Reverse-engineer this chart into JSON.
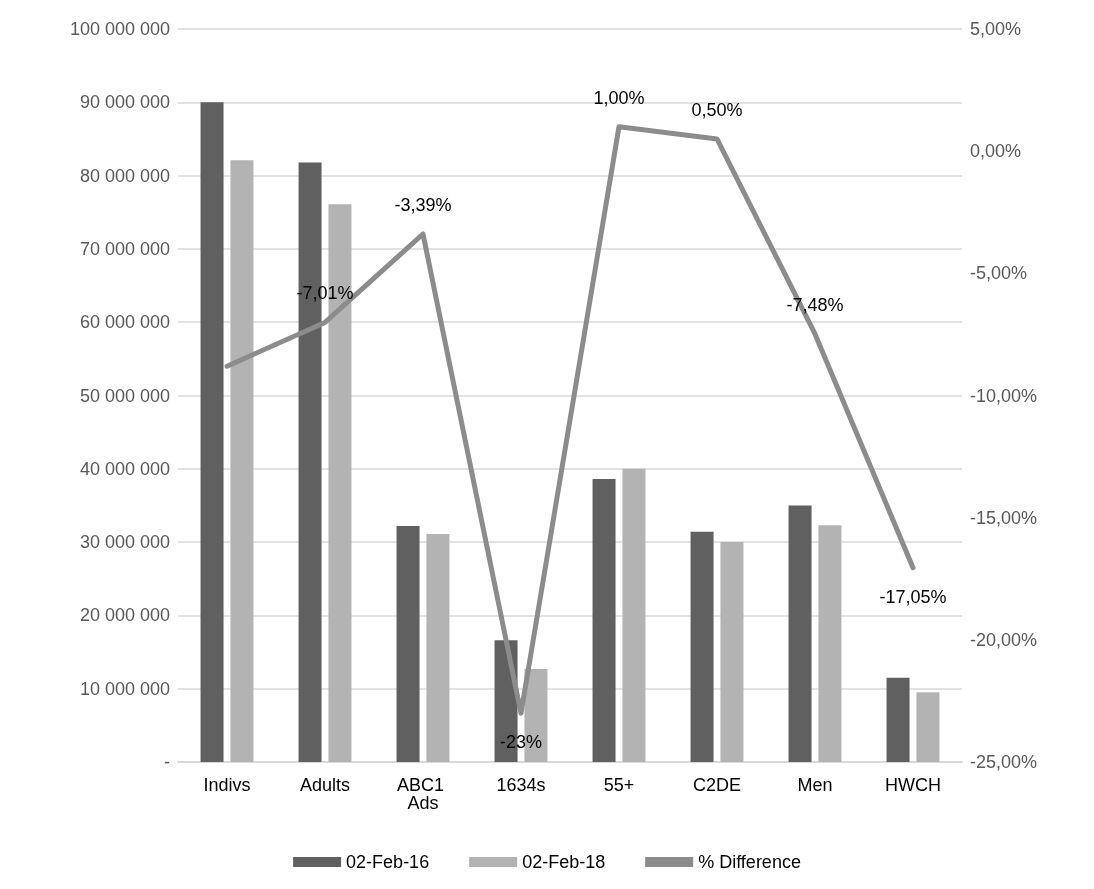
{
  "chart_data": {
    "type": "bar",
    "categories": [
      "Indivs",
      "Adults",
      "ABC1 Ads",
      "1634s",
      "55+",
      "C2DE",
      "Men",
      "HWCH"
    ],
    "series": [
      {
        "name": "02-Feb-16",
        "color": "#606060",
        "values": [
          90000000,
          81800000,
          32200000,
          16600000,
          38600000,
          31400000,
          35000000,
          11500000
        ]
      },
      {
        "name": "02-Feb-18",
        "color": "#b3b3b3",
        "values": [
          82100000,
          76100000,
          31100000,
          12700000,
          40000000,
          30000000,
          32300000,
          9500000
        ]
      },
      {
        "name": "% Difference",
        "type": "line",
        "axis": "y2",
        "color": "#8c8c8c",
        "values": [
          -8.8,
          -7.01,
          -3.39,
          -23,
          1.0,
          0.5,
          -7.48,
          -17.05
        ],
        "value_labels": [
          null,
          "-7,01%",
          "-3,39%",
          "-23%",
          "1,00%",
          "0,50%",
          "-7,48%",
          "-17,05%"
        ]
      }
    ],
    "ylim": [
      0,
      100000000
    ],
    "yticks": [
      {
        "value": 0,
        "label": "-"
      },
      {
        "value": 10000000,
        "label": "10 000 000"
      },
      {
        "value": 20000000,
        "label": "20 000 000"
      },
      {
        "value": 30000000,
        "label": "30 000 000"
      },
      {
        "value": 40000000,
        "label": "40 000 000"
      },
      {
        "value": 50000000,
        "label": "50 000 000"
      },
      {
        "value": 60000000,
        "label": "60 000 000"
      },
      {
        "value": 70000000,
        "label": "70 000 000"
      },
      {
        "value": 80000000,
        "label": "80 000 000"
      },
      {
        "value": 90000000,
        "label": "90 000 000"
      },
      {
        "value": 100000000,
        "label": "100 000 000"
      }
    ],
    "y2lim": [
      -25,
      5
    ],
    "y2ticks": [
      {
        "value": -25,
        "label": "-25,00%"
      },
      {
        "value": -20,
        "label": "-20,00%"
      },
      {
        "value": -15,
        "label": "-15,00%"
      },
      {
        "value": -10,
        "label": "-10,00%"
      },
      {
        "value": -5,
        "label": "-5,00%"
      },
      {
        "value": 0,
        "label": "0,00%"
      },
      {
        "value": 5,
        "label": "5,00%"
      }
    ],
    "grid": "y",
    "legend": "bottom",
    "marker": "none",
    "line_style": "solid"
  }
}
